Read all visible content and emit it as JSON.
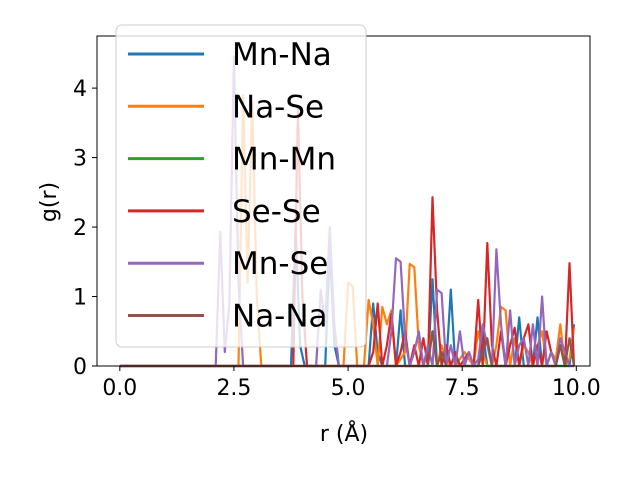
{
  "chart_data": {
    "type": "line",
    "xlabel": "r (Å)",
    "ylabel": "g(r)",
    "xlim": [
      -0.5,
      10.3
    ],
    "ylim": [
      0,
      4.75
    ],
    "xticks": [
      "0.0",
      "2.5",
      "5.0",
      "7.5",
      "10.0"
    ],
    "yticks": [
      "0",
      "1",
      "2",
      "3",
      "4"
    ],
    "legend_position": "top-left",
    "grid": false,
    "series": [
      {
        "name": "Mn-Na",
        "color": "#1f77b4",
        "x": [
          0.0,
          3.75,
          3.85,
          3.95,
          4.05,
          4.5,
          4.6,
          4.7,
          4.8,
          5.45,
          5.55,
          5.65,
          5.75,
          5.85,
          6.05,
          6.15,
          6.25,
          6.75,
          6.85,
          6.95,
          7.15,
          7.25,
          7.35,
          7.85,
          7.95,
          8.05,
          8.65,
          8.75,
          8.85,
          9.05,
          9.15,
          9.25,
          9.85,
          9.95
        ],
        "y": [
          0,
          0,
          2.0,
          0.3,
          0,
          0,
          1.7,
          0.3,
          0,
          0,
          0.9,
          0.2,
          0,
          0,
          0,
          0.8,
          0,
          0,
          1.25,
          0,
          0,
          1.1,
          0,
          0,
          0.5,
          0,
          0,
          0.7,
          0,
          0,
          0.7,
          0,
          0,
          0.6
        ]
      },
      {
        "name": "Na-Se",
        "color": "#ff7f0e",
        "x": [
          0.0,
          2.6,
          2.7,
          2.8,
          2.9,
          3.0,
          3.1,
          4.9,
          5.0,
          5.1,
          5.2,
          5.35,
          5.45,
          5.55,
          5.65,
          5.75,
          5.85,
          5.95,
          6.05,
          6.15,
          6.25,
          6.35,
          6.45,
          6.55,
          6.65,
          6.75,
          6.85,
          6.95,
          7.05,
          7.15,
          7.25,
          7.35,
          7.45,
          7.55,
          7.65,
          7.75,
          7.85,
          7.95,
          8.05,
          8.15,
          8.25,
          8.35,
          8.45,
          8.55,
          8.65,
          8.75,
          8.85,
          8.95,
          9.05,
          9.15,
          9.25,
          9.35,
          9.45,
          9.55,
          9.65,
          9.75,
          9.85,
          9.95
        ],
        "y": [
          0,
          0,
          3.9,
          1.2,
          3.8,
          1.0,
          0,
          0,
          1.2,
          1.15,
          0,
          0,
          0.95,
          0.6,
          0,
          0.85,
          0.6,
          0.8,
          0,
          0.1,
          0.2,
          1.47,
          1.42,
          0.3,
          0,
          0.2,
          0.5,
          0,
          0.3,
          0.1,
          0,
          0,
          0.1,
          0.2,
          0.1,
          0,
          0.5,
          0.2,
          0,
          0,
          0.3,
          0.85,
          0.8,
          0,
          0.4,
          0,
          0.3,
          0.2,
          0,
          0.3,
          0.5,
          0,
          0.2,
          0.1,
          0.6,
          0,
          0.1,
          0.55
        ]
      },
      {
        "name": "Mn-Mn",
        "color": "#2ca02c",
        "x": [
          0.0,
          9.95
        ],
        "y": [
          0,
          0
        ]
      },
      {
        "name": "Se-Se",
        "color": "#d62728",
        "x": [
          0.0,
          3.8,
          3.9,
          4.0,
          4.1,
          5.45,
          5.55,
          5.65,
          5.75,
          5.85,
          5.95,
          6.05,
          6.15,
          6.25,
          6.35,
          6.45,
          6.55,
          6.65,
          6.75,
          6.85,
          6.95,
          7.05,
          7.15,
          7.25,
          7.35,
          7.45,
          7.55,
          7.65,
          7.75,
          7.85,
          7.95,
          8.05,
          8.15,
          8.25,
          8.35,
          8.45,
          8.55,
          8.65,
          8.75,
          8.85,
          8.95,
          9.05,
          9.15,
          9.25,
          9.35,
          9.45,
          9.55,
          9.65,
          9.75,
          9.85,
          9.95
        ],
        "y": [
          0,
          0,
          3.7,
          1.0,
          0,
          0,
          0.2,
          0.9,
          0,
          0.3,
          0.75,
          0,
          0.2,
          0.5,
          0,
          0.3,
          0,
          0.4,
          0,
          2.43,
          0.8,
          0,
          0.3,
          0,
          0.2,
          0,
          0.1,
          0.2,
          0,
          0.95,
          0,
          1.77,
          0.3,
          0,
          0.5,
          0,
          0.3,
          0.55,
          0,
          0.4,
          0.6,
          0,
          0.3,
          0,
          0.5,
          0.2,
          0,
          0.3,
          0,
          1.48,
          0
        ]
      },
      {
        "name": "Mn-Se",
        "color": "#9467bd",
        "x": [
          0.0,
          2.1,
          2.2,
          2.3,
          2.4,
          2.5,
          2.6,
          2.7,
          4.3,
          4.4,
          4.5,
          4.6,
          4.7,
          4.8,
          5.85,
          5.95,
          6.05,
          6.15,
          6.25,
          6.35,
          6.45,
          6.55,
          6.65,
          6.75,
          6.85,
          6.95,
          7.05,
          7.15,
          7.25,
          7.35,
          7.45,
          7.55,
          7.65,
          7.75,
          7.85,
          7.95,
          8.05,
          8.15,
          8.25,
          8.35,
          8.45,
          8.55,
          8.65,
          8.75,
          8.85,
          8.95,
          9.05,
          9.15,
          9.25,
          9.35,
          9.45,
          9.55,
          9.65,
          9.75,
          9.85,
          9.95
        ],
        "y": [
          0,
          0,
          1.93,
          0.2,
          0.9,
          4.45,
          1.2,
          0,
          0,
          1.1,
          0.6,
          2.0,
          0.6,
          0,
          0,
          0.5,
          1.55,
          1.5,
          0.4,
          0,
          0.2,
          0.5,
          0,
          0.3,
          0,
          1.1,
          1.05,
          0,
          0.3,
          0,
          0.5,
          0,
          0.2,
          0,
          0.1,
          0.6,
          0.3,
          0,
          1.68,
          0.6,
          0,
          0.8,
          0,
          0.3,
          0.4,
          0,
          0.6,
          0,
          1.0,
          0,
          0.2,
          0,
          0.4,
          0.2,
          0,
          0
        ]
      },
      {
        "name": "Na-Na",
        "color": "#8c564b",
        "x": [
          0.0,
          6.75,
          6.85,
          6.95,
          7.05,
          7.15,
          7.25,
          7.85,
          7.95,
          8.05,
          8.15,
          8.25,
          9.55,
          9.65,
          9.75,
          9.85,
          9.95
        ],
        "y": [
          0,
          0,
          0.5,
          0,
          0.2,
          0,
          0,
          0,
          0.2,
          0.4,
          0,
          0,
          0,
          0.3,
          0,
          0.4,
          0
        ]
      }
    ]
  }
}
